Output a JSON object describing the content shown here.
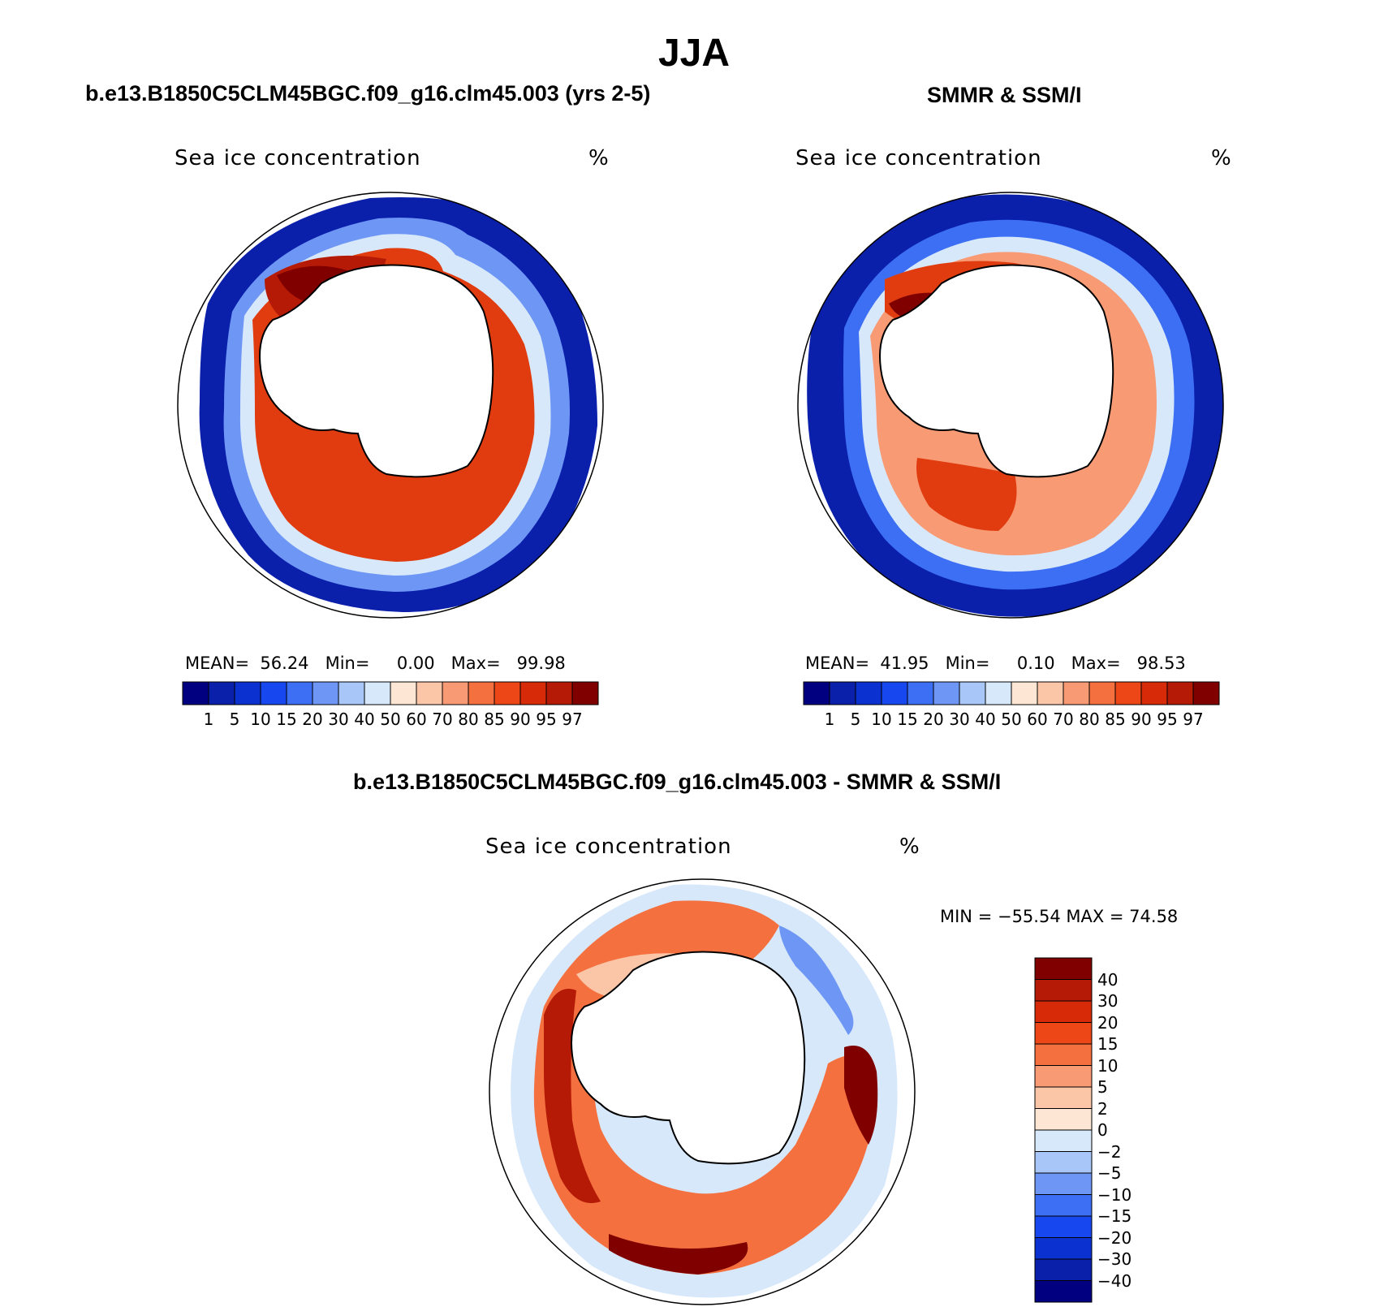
{
  "title": "JJA",
  "panels": [
    {
      "id": "model",
      "subtitle": "b.e13.B1850C5CLM45BGC.f09_g16.clm45.003 (yrs 2-5)",
      "var_label": "Sea ice concentration",
      "unit": "%",
      "stats": {
        "mean_label": "MEAN=",
        "mean": "56.24",
        "min_label": "Min=",
        "min": "0.00",
        "max_label": "Max=",
        "max": "99.98"
      }
    },
    {
      "id": "obs",
      "subtitle": "SMMR & SSM/I",
      "var_label": "Sea ice concentration",
      "unit": "%",
      "stats": {
        "mean_label": "MEAN=",
        "mean": "41.95",
        "min_label": "Min=",
        "min": "0.10",
        "max_label": "Max=",
        "max": "98.53"
      }
    }
  ],
  "diff": {
    "subtitle": "b.e13.B1850C5CLM45BGC.f09_g16.clm45.003 - SMMR & SSM/I",
    "var_label": "Sea ice concentration",
    "unit": "%",
    "minmax": "MIN = −55.54 MAX =   74.58"
  },
  "colorbar": {
    "levels": [
      "1",
      "5",
      "10",
      "15",
      "20",
      "30",
      "40",
      "50",
      "60",
      "70",
      "80",
      "85",
      "90",
      "95",
      "97"
    ],
    "colors": [
      "#000080",
      "#0a1faa",
      "#0b31d1",
      "#1747ef",
      "#3d6ff4",
      "#6e97f5",
      "#a9c6f8",
      "#d8e8fb",
      "#fde7d4",
      "#fbc6a7",
      "#f89a74",
      "#f4703f",
      "#ee4717",
      "#d62a09",
      "#b51a06",
      "#800000"
    ]
  },
  "diff_colorbar": {
    "levels": [
      "40",
      "30",
      "20",
      "15",
      "10",
      "5",
      "2",
      "0",
      "−2",
      "−5",
      "−10",
      "−15",
      "−20",
      "−30",
      "−40"
    ],
    "colors": [
      "#800000",
      "#b51a06",
      "#d62a09",
      "#ee4717",
      "#f4703f",
      "#f89a74",
      "#fbc6a7",
      "#fde7d4",
      "#d8e8fb",
      "#a9c6f8",
      "#6e97f5",
      "#3d6ff4",
      "#1747ef",
      "#0b31d1",
      "#0a1faa",
      "#000080"
    ]
  },
  "legend_colors": {
    "ice_max": "#800000",
    "ice_high": "#e03c0f",
    "ice_mid": "#f89a74",
    "edge": "#d8e8fb",
    "open": "#0a1faa"
  }
}
